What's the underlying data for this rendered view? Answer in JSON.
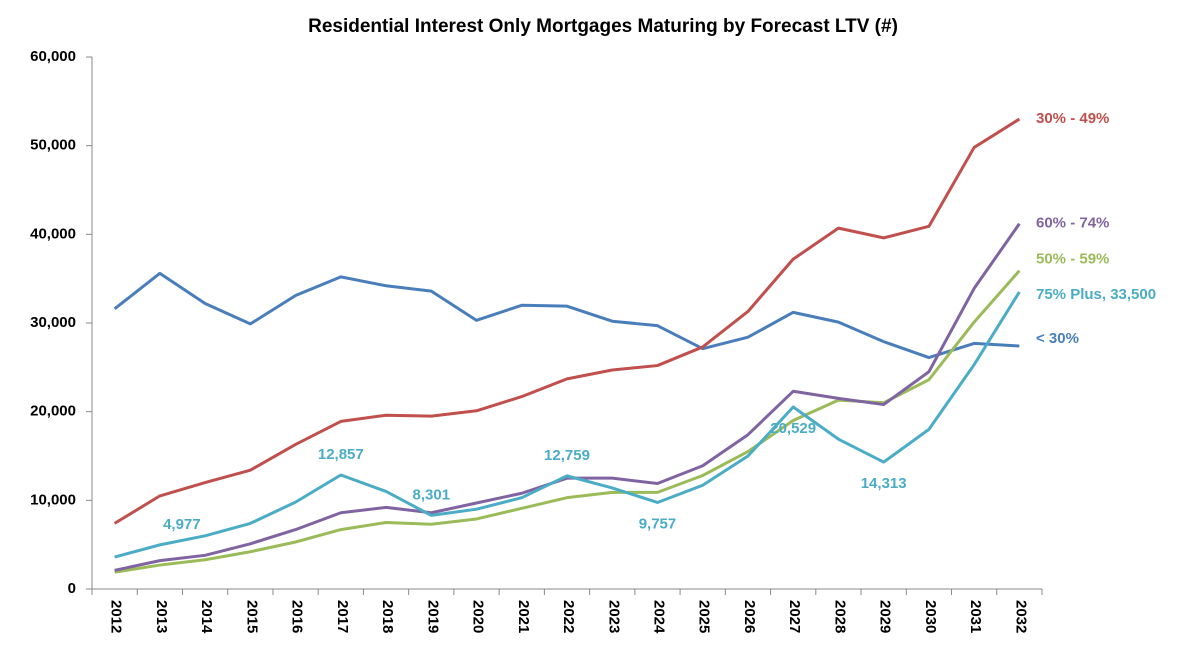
{
  "chart_data": {
    "type": "line",
    "title": "Residential Interest Only Mortgages Maturing by Forecast LTV (#)",
    "categories": [
      "2012",
      "2013",
      "2014",
      "2015",
      "2016",
      "2017",
      "2018",
      "2019",
      "2020",
      "2021",
      "2022",
      "2023",
      "2024",
      "2025",
      "2026",
      "2027",
      "2028",
      "2029",
      "2030",
      "2031",
      "2032"
    ],
    "ylim": [
      0,
      60000
    ],
    "yticks": [
      {
        "value": 0,
        "label": "0"
      },
      {
        "value": 10000,
        "label": "10,000"
      },
      {
        "value": 20000,
        "label": "20,000"
      },
      {
        "value": 30000,
        "label": "30,000"
      },
      {
        "value": 40000,
        "label": "40,000"
      },
      {
        "value": 50000,
        "label": "50,000"
      },
      {
        "value": 60000,
        "label": "60,000"
      }
    ],
    "series": [
      {
        "name": "< 30%",
        "color": "#4a7ebb",
        "values": [
          31600,
          35600,
          32200,
          29900,
          33100,
          35200,
          34200,
          33600,
          30300,
          32000,
          31900,
          30200,
          29700,
          27100,
          28400,
          31200,
          30100,
          27900,
          26100,
          27700,
          27400
        ]
      },
      {
        "name": "30% - 49%",
        "color": "#c0504d",
        "values": [
          7400,
          10500,
          12000,
          13400,
          16300,
          18900,
          19600,
          19500,
          20100,
          21700,
          23700,
          24700,
          25200,
          27300,
          31300,
          37200,
          40700,
          39600,
          40900,
          49800,
          53000
        ]
      },
      {
        "name": "50% - 59%",
        "color": "#9bbb59",
        "values": [
          1900,
          2700,
          3300,
          4200,
          5300,
          6700,
          7500,
          7300,
          7900,
          9100,
          10300,
          10900,
          10900,
          12800,
          15500,
          19000,
          21300,
          21000,
          23600,
          30100,
          35900
        ]
      },
      {
        "name": "60% - 74%",
        "color": "#8064a2",
        "values": [
          2100,
          3200,
          3800,
          5100,
          6700,
          8600,
          9200,
          8600,
          9700,
          10800,
          12500,
          12500,
          11900,
          13900,
          17400,
          22300,
          21500,
          20800,
          24500,
          33900,
          41200
        ]
      },
      {
        "name": "75% Plus, 33,500",
        "color": "#4bacc6",
        "values": [
          3600,
          4977,
          6000,
          7400,
          9800,
          12857,
          11000,
          8301,
          9000,
          10300,
          12759,
          11400,
          9757,
          11700,
          15000,
          20529,
          16900,
          14313,
          18000,
          25300,
          33500
        ],
        "value_labels": [
          null,
          "4,977",
          null,
          null,
          null,
          "12,857",
          null,
          "8,301",
          null,
          null,
          "12,759",
          null,
          "9,757",
          null,
          null,
          "20,529",
          null,
          "14,313",
          null,
          null,
          null
        ]
      }
    ]
  }
}
